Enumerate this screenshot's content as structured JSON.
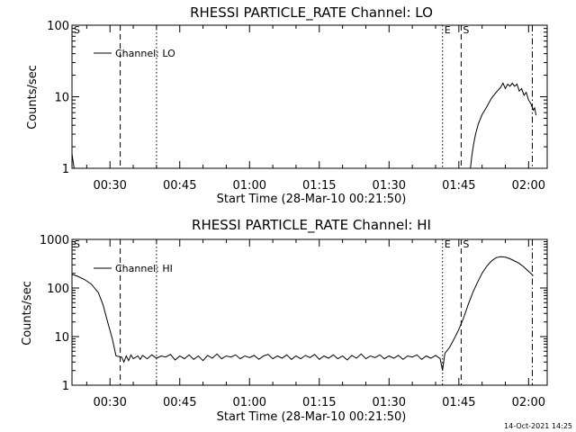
{
  "footer": {
    "timestamp": "14-Oct-2021 14:25"
  },
  "chart_data": [
    {
      "type": "line",
      "title": "RHESSI PARTICLE_RATE Channel: LO",
      "xlabel": "Start Time (28-Mar-10 00:21:50)",
      "ylabel": "Counts/sec",
      "yscale": "log",
      "xlim": [
        21.83,
        124
      ],
      "ylim": [
        1,
        100
      ],
      "x_ticks": [
        30,
        45,
        60,
        75,
        90,
        105,
        120
      ],
      "x_tick_labels": [
        "00:30",
        "00:45",
        "01:00",
        "01:15",
        "01:30",
        "01:45",
        "02:00"
      ],
      "y_ticks": [
        1,
        10,
        100
      ],
      "y_tick_labels": [
        "1",
        "10",
        "100"
      ],
      "legend": "top-left",
      "series": [
        {
          "name": "Channel: LO",
          "points": [
            [
              21.83,
              1.6
            ],
            [
              22.1,
              1.2
            ],
            [
              22.3,
              1.0
            ],
            [
              107.5,
              1.0
            ],
            [
              107.8,
              1.5
            ],
            [
              108.2,
              2.2
            ],
            [
              108.6,
              3.0
            ],
            [
              109.2,
              4.2
            ],
            [
              110,
              5.6
            ],
            [
              111,
              7.2
            ],
            [
              112,
              9.5
            ],
            [
              113,
              11.5
            ],
            [
              114,
              13.5
            ],
            [
              114.5,
              15.5
            ],
            [
              115,
              13
            ],
            [
              115.5,
              15
            ],
            [
              116,
              14
            ],
            [
              116.5,
              15.5
            ],
            [
              117,
              14
            ],
            [
              117.5,
              15
            ],
            [
              118,
              12
            ],
            [
              118.5,
              13
            ],
            [
              119,
              10.5
            ],
            [
              119.5,
              11.5
            ],
            [
              120,
              9
            ],
            [
              120.5,
              8
            ],
            [
              121,
              6.5
            ],
            [
              121.3,
              7
            ],
            [
              121.6,
              5.5
            ]
          ]
        }
      ],
      "markers": [
        {
          "x": 32.2,
          "style": "dashed",
          "label": ""
        },
        {
          "x": 40.0,
          "style": "dotted",
          "label": ""
        },
        {
          "x": 101.5,
          "style": "dotted",
          "label": "E"
        },
        {
          "x": 105.5,
          "style": "dashed",
          "label": "S"
        },
        {
          "x": 120.8,
          "style": "dashdot",
          "label": ""
        }
      ],
      "left_marker_label": "S"
    },
    {
      "type": "line",
      "title": "RHESSI PARTICLE_RATE Channel: HI",
      "xlabel": "Start Time (28-Mar-10 00:21:50)",
      "ylabel": "Counts/sec",
      "yscale": "log",
      "xlim": [
        21.83,
        124
      ],
      "ylim": [
        1,
        1000
      ],
      "x_ticks": [
        30,
        45,
        60,
        75,
        90,
        105,
        120
      ],
      "x_tick_labels": [
        "00:30",
        "00:45",
        "01:00",
        "01:15",
        "01:30",
        "01:45",
        "02:00"
      ],
      "y_ticks": [
        1,
        10,
        100,
        1000
      ],
      "y_tick_labels": [
        "1",
        "10",
        "100",
        "1000"
      ],
      "legend": "top-left",
      "series": [
        {
          "name": "Channel: HI",
          "points": [
            [
              21.83,
              190
            ],
            [
              23,
              175
            ],
            [
              24.5,
              150
            ],
            [
              26,
              120
            ],
            [
              27.5,
              80
            ],
            [
              28.5,
              45
            ],
            [
              29.5,
              20
            ],
            [
              30.5,
              9
            ],
            [
              31.3,
              4
            ],
            [
              32.5,
              3.8
            ],
            [
              33,
              3
            ],
            [
              33.5,
              4
            ],
            [
              34,
              3.2
            ],
            [
              34.5,
              4.2
            ],
            [
              35,
              3.5
            ],
            [
              36,
              4
            ],
            [
              36.5,
              3.4
            ],
            [
              37,
              4.1
            ],
            [
              38,
              3.5
            ],
            [
              39,
              4.2
            ],
            [
              40,
              3.6
            ],
            [
              41,
              4
            ],
            [
              42,
              3.8
            ],
            [
              43,
              4.3
            ],
            [
              44,
              3.3
            ],
            [
              45,
              4
            ],
            [
              46,
              3.5
            ],
            [
              47,
              4.2
            ],
            [
              48,
              3.4
            ],
            [
              49,
              4
            ],
            [
              50,
              3.2
            ],
            [
              51,
              4.1
            ],
            [
              52,
              3.6
            ],
            [
              53,
              4.4
            ],
            [
              54,
              3.5
            ],
            [
              55,
              4
            ],
            [
              56,
              3.8
            ],
            [
              57,
              4.2
            ],
            [
              58,
              3.5
            ],
            [
              59,
              4
            ],
            [
              60,
              3.7
            ],
            [
              61,
              4.1
            ],
            [
              62,
              3.4
            ],
            [
              63,
              4
            ],
            [
              64,
              4.3
            ],
            [
              65,
              3.5
            ],
            [
              66,
              4
            ],
            [
              67,
              3.6
            ],
            [
              68,
              4.2
            ],
            [
              69,
              3.4
            ],
            [
              70,
              4
            ],
            [
              71,
              3.5
            ],
            [
              72,
              4.1
            ],
            [
              73,
              3.7
            ],
            [
              74,
              4.3
            ],
            [
              75,
              3.4
            ],
            [
              76,
              4
            ],
            [
              77,
              3.6
            ],
            [
              78,
              4.2
            ],
            [
              79,
              3.5
            ],
            [
              80,
              4
            ],
            [
              81,
              3.3
            ],
            [
              82,
              4.1
            ],
            [
              83,
              3.6
            ],
            [
              84,
              4.4
            ],
            [
              85,
              3.5
            ],
            [
              86,
              4
            ],
            [
              87,
              3.7
            ],
            [
              88,
              4.2
            ],
            [
              89,
              3.5
            ],
            [
              90,
              4
            ],
            [
              91,
              3.6
            ],
            [
              92,
              4.1
            ],
            [
              93,
              3.4
            ],
            [
              94,
              4
            ],
            [
              95,
              3.8
            ],
            [
              96,
              4.2
            ],
            [
              97,
              3.4
            ],
            [
              98,
              4
            ],
            [
              99,
              3.6
            ],
            [
              100,
              4.1
            ],
            [
              101,
              3.5
            ],
            [
              101.5,
              2.0
            ],
            [
              102,
              4.5
            ],
            [
              103,
              6
            ],
            [
              104,
              9
            ],
            [
              105,
              14
            ],
            [
              106,
              24
            ],
            [
              107,
              45
            ],
            [
              108,
              80
            ],
            [
              109,
              130
            ],
            [
              110,
              200
            ],
            [
              111,
              280
            ],
            [
              112,
              360
            ],
            [
              113,
              420
            ],
            [
              114,
              440
            ],
            [
              115,
              430
            ],
            [
              116,
              400
            ],
            [
              117,
              360
            ],
            [
              118,
              320
            ],
            [
              119,
              270
            ],
            [
              120,
              220
            ],
            [
              121,
              180
            ]
          ]
        }
      ],
      "markers": [
        {
          "x": 32.2,
          "style": "dashed",
          "label": ""
        },
        {
          "x": 40.0,
          "style": "dotted",
          "label": ""
        },
        {
          "x": 101.5,
          "style": "dotted",
          "label": "E"
        },
        {
          "x": 105.5,
          "style": "dashed",
          "label": "S"
        },
        {
          "x": 120.8,
          "style": "dashdot",
          "label": ""
        }
      ],
      "left_marker_label": "S"
    }
  ]
}
